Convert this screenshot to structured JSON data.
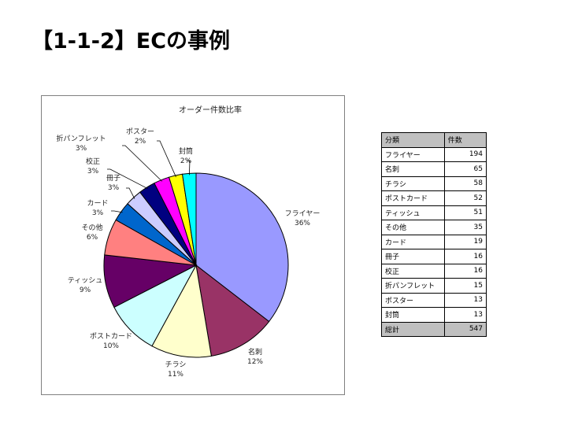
{
  "title": "【1-1-2】ECの事例",
  "chart_data": {
    "type": "pie",
    "title": "オーダー件数比率",
    "slices": [
      {
        "label": "フライヤー",
        "pct": "36%",
        "value": 194,
        "color": "#9999ff"
      },
      {
        "label": "名刺",
        "pct": "12%",
        "value": 65,
        "color": "#993366"
      },
      {
        "label": "チラシ",
        "pct": "11%",
        "value": 58,
        "color": "#ffffcc"
      },
      {
        "label": "ポストカード",
        "pct": "10%",
        "value": 52,
        "color": "#ccffff"
      },
      {
        "label": "ティッシュ",
        "pct": "9%",
        "value": 51,
        "color": "#660066"
      },
      {
        "label": "その他",
        "pct": "6%",
        "value": 35,
        "color": "#ff8080"
      },
      {
        "label": "カード",
        "pct": "3%",
        "value": 19,
        "color": "#0066cc"
      },
      {
        "label": "冊子",
        "pct": "3%",
        "value": 16,
        "color": "#ccccff"
      },
      {
        "label": "校正",
        "pct": "3%",
        "value": 16,
        "color": "#000080"
      },
      {
        "label": "折パンフレット",
        "pct": "3%",
        "value": 15,
        "color": "#ff00ff"
      },
      {
        "label": "ポスター",
        "pct": "2%",
        "value": 13,
        "color": "#ffff00"
      },
      {
        "label": "封筒",
        "pct": "2%",
        "value": 13,
        "color": "#00ffff"
      }
    ]
  },
  "table": {
    "headers": [
      "分類",
      "件数"
    ],
    "rows": [
      [
        "フライヤー",
        "194"
      ],
      [
        "名刺",
        "65"
      ],
      [
        "チラシ",
        "58"
      ],
      [
        "ポストカード",
        "52"
      ],
      [
        "ティッシュ",
        "51"
      ],
      [
        "その他",
        "35"
      ],
      [
        "カード",
        "19"
      ],
      [
        "冊子",
        "16"
      ],
      [
        "校正",
        "16"
      ],
      [
        "折パンフレット",
        "15"
      ],
      [
        "ポスター",
        "13"
      ],
      [
        "封筒",
        "13"
      ]
    ],
    "total": [
      "総計",
      "547"
    ]
  }
}
